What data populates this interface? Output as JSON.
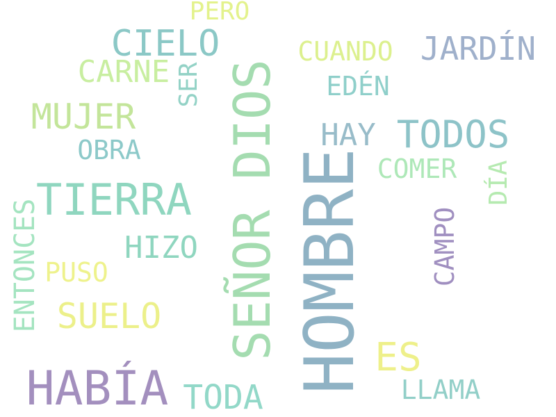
{
  "words": [
    {
      "text": "HOMBRE",
      "color": "#8fb2c4"
    },
    {
      "text": "SEÑOR DIOS",
      "color": "#a4dcb0"
    },
    {
      "text": "TIERRA",
      "color": "#8fd6bf"
    },
    {
      "text": "HABÍA",
      "color": "#a38fbe"
    },
    {
      "text": "TODOS",
      "color": "#8dc3c8"
    },
    {
      "text": "CIELO",
      "color": "#8bc8c6"
    },
    {
      "text": "MUJER",
      "color": "#c3e59a"
    },
    {
      "text": "SUELO",
      "color": "#ecf08a"
    },
    {
      "text": "TODA",
      "color": "#92d8c8"
    },
    {
      "text": "ES",
      "color": "#eef08a"
    },
    {
      "text": "JARDÍN",
      "color": "#9fb0cb"
    },
    {
      "text": "CARNE",
      "color": "#c8eea0"
    },
    {
      "text": "HAY",
      "color": "#98bcc9"
    },
    {
      "text": "HIZO",
      "color": "#8fd6bf"
    },
    {
      "text": "CUANDO",
      "color": "#dcf08e"
    },
    {
      "text": "COMER",
      "color": "#aee8b8"
    },
    {
      "text": "LLAMA",
      "color": "#92cfc8"
    },
    {
      "text": "EDÉN",
      "color": "#8fcfca"
    },
    {
      "text": "OBRA",
      "color": "#8cc9c9"
    },
    {
      "text": "PUSO",
      "color": "#eef28c"
    },
    {
      "text": "ENTONCES",
      "color": "#a4e4c0"
    },
    {
      "text": "CAMPO",
      "color": "#a08fc0"
    },
    {
      "text": "DÍA",
      "color": "#b5eab0"
    },
    {
      "text": "SER",
      "color": "#93d2c6"
    },
    {
      "text": "PERO",
      "color": "#e3f28c"
    }
  ]
}
